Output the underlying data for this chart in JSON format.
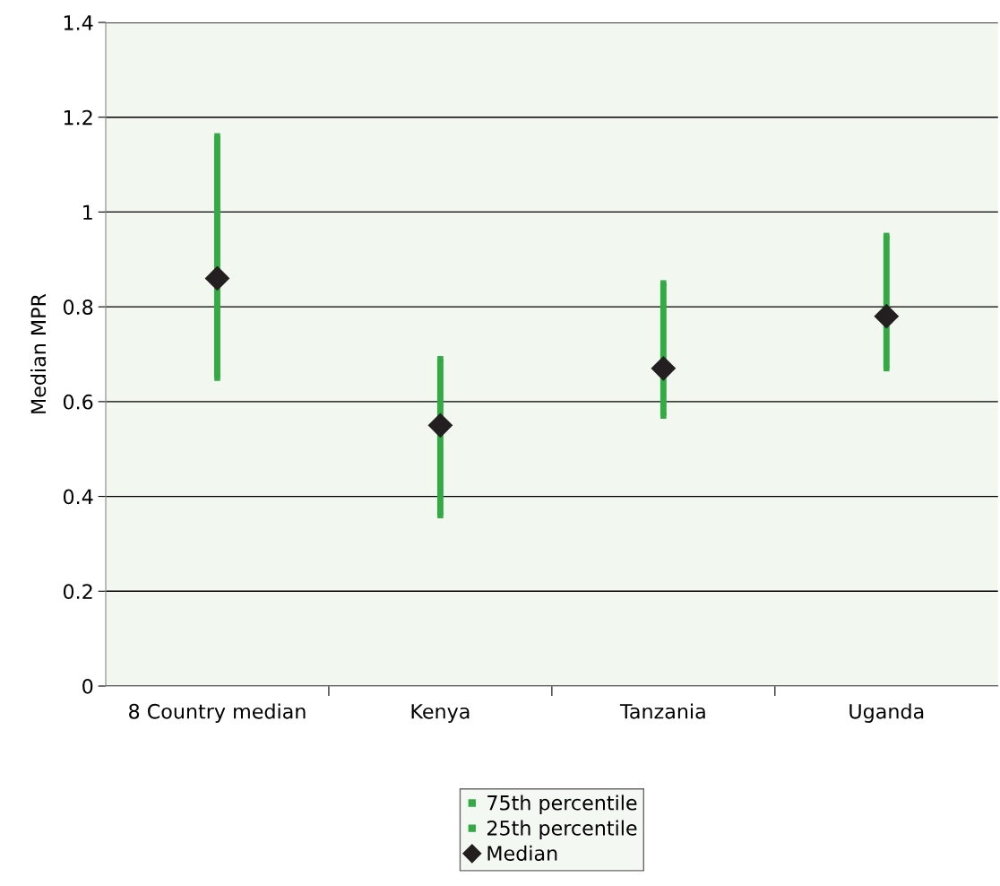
{
  "chart_data": {
    "type": "scatter",
    "ylabel": "Median MPR",
    "categories": [
      "8 Country median",
      "Kenya",
      "Tanzania",
      "Uganda"
    ],
    "ylim": [
      0,
      1.4
    ],
    "yticks": [
      0,
      0.2,
      0.4,
      0.6,
      0.8,
      1,
      1.2,
      1.4
    ],
    "grid": "y",
    "legend": "bottom",
    "series": [
      {
        "name": "75th percentile",
        "marker": "square",
        "color": "#33aa44",
        "values": [
          1.16,
          0.69,
          0.85,
          0.95
        ]
      },
      {
        "name": "25th percentile",
        "marker": "square",
        "color": "#33aa44",
        "values": [
          0.65,
          0.36,
          0.57,
          0.67
        ]
      },
      {
        "name": "Median",
        "marker": "diamond",
        "color": "#231f20",
        "values": [
          0.86,
          0.55,
          0.67,
          0.78
        ]
      }
    ]
  }
}
